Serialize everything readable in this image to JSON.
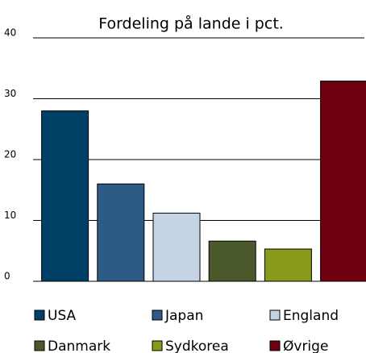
{
  "chart_data": {
    "type": "bar",
    "title": "Fordeling på lande i pct.",
    "categories": [
      "USA",
      "Japan",
      "England",
      "Danmark",
      "Sydkorea",
      "Øvrige"
    ],
    "values": [
      28,
      16,
      11.2,
      6.6,
      5.3,
      32.9
    ],
    "colors": [
      "#003f66",
      "#2e5a87",
      "#c5d3e5",
      "#4a5a2a",
      "#8a9a1a",
      "#6e0010"
    ],
    "ylim": [
      0,
      40
    ],
    "yticks": [
      0,
      10,
      20,
      30,
      40
    ],
    "grid": true,
    "legend": "bottom"
  }
}
